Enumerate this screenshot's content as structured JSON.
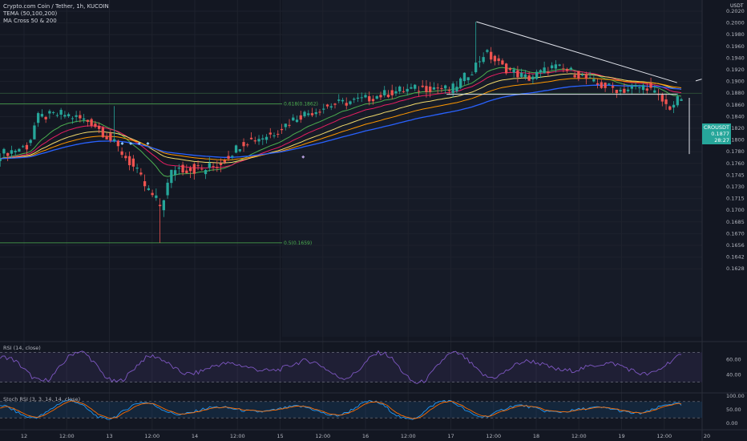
{
  "header": {
    "symbol_title": "Crypto.com Coin / Tether, 1h, KUCOIN",
    "indicator_1": "TEMA (50,100,200)",
    "indicator_2": "MA Cross 50 & 200",
    "currency": "USDT"
  },
  "last_price": {
    "symbol": "CROUSDT",
    "value": "0.1877",
    "countdown": "28:27"
  },
  "chart_data": {
    "type": "candlestick",
    "title": "Crypto.com Coin / Tether, 1h, KUCOIN",
    "ylim": [
      0.1628,
      0.2028
    ],
    "y_ticks": [
      "0.2020",
      "0.2000",
      "0.1980",
      "0.1960",
      "0.1940",
      "0.1920",
      "0.1900",
      "0.1880",
      "0.1860",
      "0.1840",
      "0.1820",
      "0.1800",
      "0.1780",
      "0.1760",
      "0.1745",
      "0.1730",
      "0.1715",
      "0.1700",
      "0.1685",
      "0.1670",
      "0.1656",
      "0.1642",
      "0.1628"
    ],
    "x_ticks": [
      "12",
      "12:00",
      "13",
      "12:00",
      "14",
      "12:00",
      "15",
      "12:00",
      "16",
      "12:00",
      "17",
      "12:00",
      "18",
      "12:00",
      "19",
      "12:00",
      "20"
    ],
    "fib_levels": [
      {
        "label": "0.618(0.1862)",
        "price": 0.1862
      },
      {
        "label": "0.5(0.1659)",
        "price": 0.1659
      }
    ],
    "horizontal_lines": [
      0.1878
    ],
    "trendline": {
      "from": {
        "day": 17.3,
        "price": 0.2002
      },
      "to": {
        "day": 19.65,
        "price": 0.1898
      }
    },
    "series": [
      {
        "name": "TEMA 50",
        "color": "#4caf50"
      },
      {
        "name": "TEMA 100",
        "color": "#e91e63"
      },
      {
        "name": "TEMA 200",
        "color": "#ff9800"
      },
      {
        "name": "MA 50",
        "color": "#f0d96b"
      },
      {
        "name": "MA 200",
        "color": "#2962ff"
      }
    ]
  },
  "rsi": {
    "label": "RSI (14, close)",
    "ticks": [
      "60.00",
      "40.00"
    ],
    "ylim": [
      20,
      80
    ],
    "bands": [
      70,
      30
    ]
  },
  "stoch": {
    "label": "Stoch RSI (3, 3, 14, 14, close)",
    "ticks": [
      "100.00",
      "50.00",
      "0.00"
    ],
    "ylim": [
      0,
      100
    ],
    "bands": [
      80,
      20
    ]
  }
}
